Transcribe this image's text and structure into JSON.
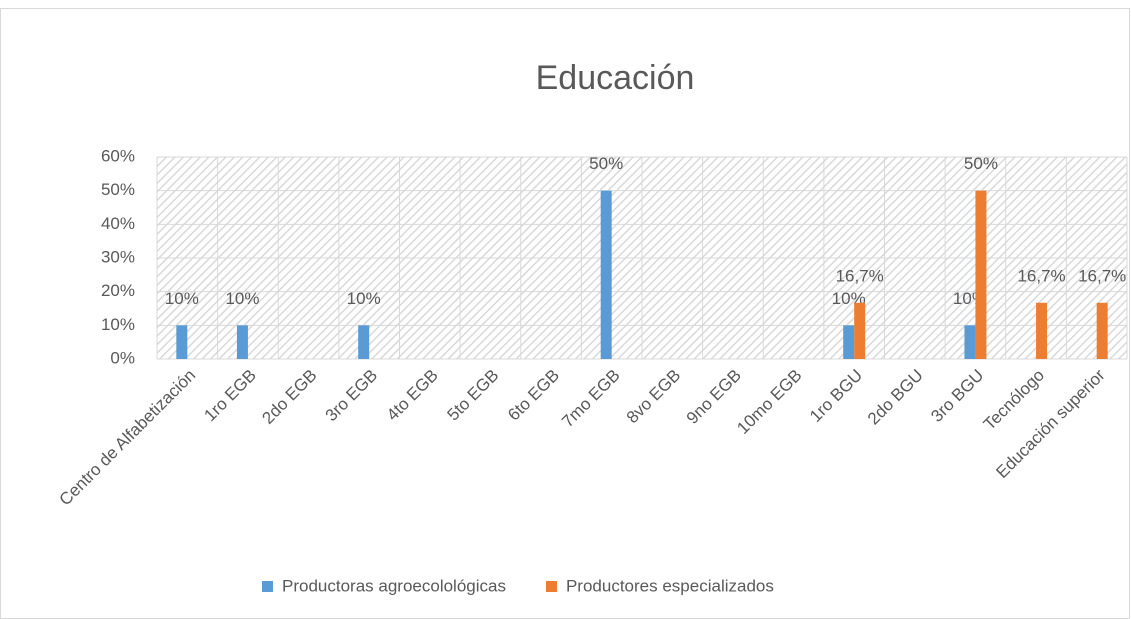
{
  "chart_data": {
    "type": "bar",
    "title": "Educación",
    "categories": [
      "Centro de Alfabetización",
      "1ro EGB",
      "2do EGB",
      "3ro EGB",
      "4to EGB",
      "5to EGB",
      "6to EGB",
      "7mo EGB",
      "8vo EGB",
      "9no EGB",
      "10mo EGB",
      "1ro BGU",
      "2do BGU",
      "3ro BGU",
      "Tecnólogo",
      "Educación superior"
    ],
    "series": [
      {
        "name": "Productoras agroecolológicas",
        "color": "#5b9bd5",
        "values": [
          10,
          10,
          null,
          10,
          null,
          null,
          null,
          50,
          null,
          null,
          null,
          10,
          null,
          10,
          null,
          null
        ],
        "value_labels": [
          "10%",
          "10%",
          null,
          "10%",
          null,
          null,
          null,
          "50%",
          null,
          null,
          null,
          "10%",
          null,
          "10%",
          null,
          null
        ]
      },
      {
        "name": "Productores especializados",
        "color": "#ed7d31",
        "values": [
          null,
          null,
          null,
          null,
          null,
          null,
          null,
          null,
          null,
          null,
          null,
          16.7,
          null,
          50,
          16.7,
          16.7
        ],
        "value_labels": [
          null,
          null,
          null,
          null,
          null,
          null,
          null,
          null,
          null,
          null,
          null,
          "16,7%",
          null,
          "50%",
          "16,7%",
          "16,7%"
        ]
      }
    ],
    "ylim": [
      0,
      60
    ],
    "yticks": [
      {
        "value": 0,
        "label": "0%"
      },
      {
        "value": 10,
        "label": "10%"
      },
      {
        "value": 20,
        "label": "20%"
      },
      {
        "value": 30,
        "label": "30%"
      },
      {
        "value": 40,
        "label": "40%"
      },
      {
        "value": 50,
        "label": "50%"
      },
      {
        "value": 60,
        "label": "60%"
      }
    ],
    "grid": true,
    "legend": "bottom"
  }
}
